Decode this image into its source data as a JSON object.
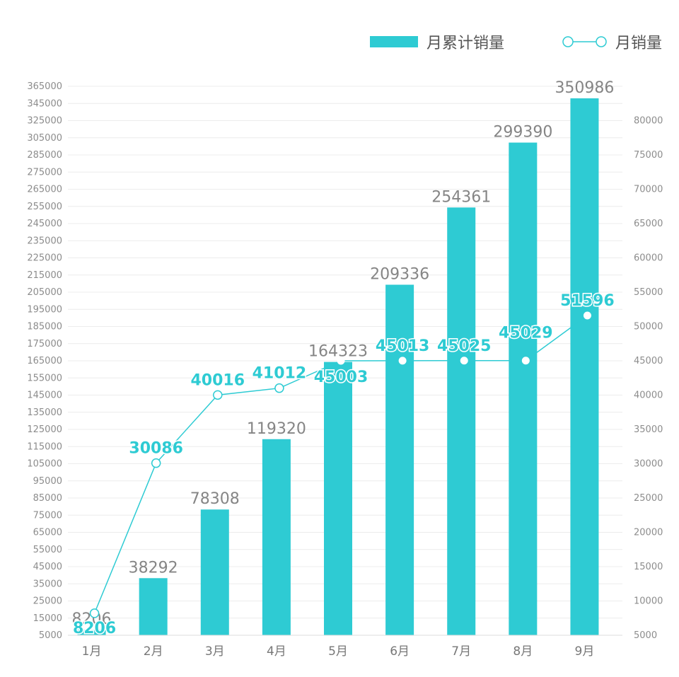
{
  "chart_data": {
    "type": "bar",
    "categories": [
      "1月",
      "2月",
      "3月",
      "4月",
      "5月",
      "6月",
      "7月",
      "8月",
      "9月"
    ],
    "series": [
      {
        "name": "月累计销量",
        "type": "bar",
        "axis": "left",
        "values": [
          8206,
          38292,
          78308,
          119320,
          164323,
          209336,
          254361,
          299390,
          350986
        ],
        "color": "#2ecbd3"
      },
      {
        "name": "月销量",
        "type": "line",
        "axis": "right",
        "values": [
          8206,
          30086,
          40016,
          41012,
          45003,
          45013,
          45025,
          45029,
          51596
        ],
        "color": "#2ecbd3"
      }
    ],
    "y_left": {
      "ticks": [
        5000,
        15000,
        25000,
        35000,
        45000,
        55000,
        65000,
        75000,
        85000,
        95000,
        105000,
        115000,
        125000,
        135000,
        145000,
        155000,
        165000,
        175000,
        185000,
        195000,
        205000,
        215000,
        225000,
        235000,
        245000,
        255000,
        265000,
        275000,
        285000,
        305000,
        325000,
        345000,
        365000
      ],
      "ylim": [
        5000,
        365000
      ]
    },
    "y_right": {
      "ticks": [
        5000,
        10000,
        15000,
        20000,
        25000,
        30000,
        35000,
        40000,
        45000,
        50000,
        55000,
        60000,
        65000,
        70000,
        75000,
        80000
      ],
      "ylim": [
        5000,
        85000
      ]
    },
    "legend": "top-right",
    "grid": true
  }
}
